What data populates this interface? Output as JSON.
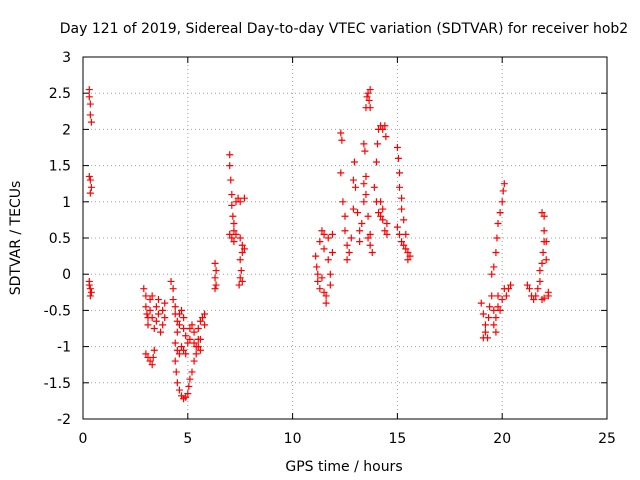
{
  "chart_data": {
    "type": "scatter",
    "title": "Day 121 of 2019, Sidereal Day-to-day VTEC variation (SDTVAR) for receiver hob2",
    "xlabel": "GPS time / hours",
    "ylabel": "SDTVAR / TECUs",
    "xlim": [
      0,
      25
    ],
    "ylim": [
      -2,
      3
    ],
    "xticks": [
      "0",
      "5",
      "10",
      "15",
      "20",
      "25"
    ],
    "yticks": [
      "-2",
      "-1.5",
      "-1",
      "-0.5",
      "0",
      "0.5",
      "1",
      "1.5",
      "2",
      "2.5",
      "3"
    ],
    "grid": true,
    "marker": "+",
    "color": "#ff0000",
    "series": [
      {
        "name": "SDTVAR",
        "points": [
          [
            0.3,
            2.55
          ],
          [
            0.3,
            2.45
          ],
          [
            0.35,
            2.35
          ],
          [
            0.35,
            2.2
          ],
          [
            0.4,
            2.1
          ],
          [
            0.3,
            1.35
          ],
          [
            0.35,
            1.3
          ],
          [
            0.4,
            1.2
          ],
          [
            0.35,
            1.12
          ],
          [
            0.3,
            -0.15
          ],
          [
            0.35,
            -0.2
          ],
          [
            0.4,
            -0.25
          ],
          [
            0.35,
            -0.3
          ],
          [
            0.3,
            -0.1
          ],
          [
            2.9,
            -0.2
          ],
          [
            3.0,
            -0.3
          ],
          [
            3.0,
            -0.45
          ],
          [
            3.05,
            -0.55
          ],
          [
            3.1,
            -0.6
          ],
          [
            3.1,
            -0.7
          ],
          [
            3.2,
            -0.5
          ],
          [
            3.2,
            -0.35
          ],
          [
            3.3,
            -0.3
          ],
          [
            3.3,
            -0.6
          ],
          [
            3.4,
            -0.75
          ],
          [
            3.5,
            -0.65
          ],
          [
            3.5,
            -0.45
          ],
          [
            3.6,
            -0.35
          ],
          [
            3.6,
            -0.55
          ],
          [
            3.7,
            -0.8
          ],
          [
            3.8,
            -0.7
          ],
          [
            3.8,
            -0.5
          ],
          [
            3.9,
            -0.4
          ],
          [
            3.9,
            -0.6
          ],
          [
            3.0,
            -1.1
          ],
          [
            3.1,
            -1.15
          ],
          [
            3.2,
            -1.2
          ],
          [
            3.3,
            -1.25
          ],
          [
            3.35,
            -1.15
          ],
          [
            3.4,
            -1.05
          ],
          [
            4.2,
            -0.1
          ],
          [
            4.3,
            -0.2
          ],
          [
            4.3,
            -0.35
          ],
          [
            4.4,
            -0.45
          ],
          [
            4.4,
            -0.55
          ],
          [
            4.5,
            -0.65
          ],
          [
            4.5,
            -0.8
          ],
          [
            4.6,
            -0.7
          ],
          [
            4.6,
            -0.55
          ],
          [
            4.7,
            -0.5
          ],
          [
            4.8,
            -0.6
          ],
          [
            4.8,
            -0.75
          ],
          [
            4.9,
            -0.85
          ],
          [
            5.0,
            -0.95
          ],
          [
            5.1,
            -0.9
          ],
          [
            5.1,
            -0.75
          ],
          [
            5.2,
            -0.7
          ],
          [
            5.3,
            -0.8
          ],
          [
            5.3,
            -0.95
          ],
          [
            5.4,
            -1.0
          ],
          [
            5.5,
            -0.9
          ],
          [
            5.5,
            -0.75
          ],
          [
            5.6,
            -0.65
          ],
          [
            5.7,
            -0.6
          ],
          [
            5.8,
            -0.7
          ],
          [
            5.8,
            -0.55
          ],
          [
            4.4,
            -1.2
          ],
          [
            4.45,
            -1.35
          ],
          [
            4.5,
            -1.5
          ],
          [
            4.6,
            -1.6
          ],
          [
            4.7,
            -1.68
          ],
          [
            4.8,
            -1.72
          ],
          [
            4.9,
            -1.7
          ],
          [
            5.0,
            -1.65
          ],
          [
            5.05,
            -1.55
          ],
          [
            5.1,
            -1.45
          ],
          [
            5.2,
            -1.35
          ],
          [
            5.3,
            -1.2
          ],
          [
            5.4,
            -1.1
          ],
          [
            5.5,
            -1.0
          ],
          [
            5.6,
            -0.9
          ],
          [
            5.6,
            -1.05
          ],
          [
            4.4,
            -0.95
          ],
          [
            4.5,
            -1.05
          ],
          [
            4.6,
            -1.1
          ],
          [
            4.7,
            -1.0
          ],
          [
            4.8,
            -1.05
          ],
          [
            4.9,
            -1.1
          ],
          [
            6.3,
            0.15
          ],
          [
            6.35,
            0.05
          ],
          [
            6.3,
            -0.05
          ],
          [
            6.35,
            -0.15
          ],
          [
            6.3,
            -0.2
          ],
          [
            7.0,
            1.65
          ],
          [
            7.0,
            1.5
          ],
          [
            7.05,
            1.3
          ],
          [
            7.1,
            1.1
          ],
          [
            7.1,
            0.95
          ],
          [
            7.15,
            0.8
          ],
          [
            7.2,
            0.7
          ],
          [
            7.2,
            0.6
          ],
          [
            7.3,
            0.55
          ],
          [
            7.3,
            1.0
          ],
          [
            7.4,
            1.05
          ],
          [
            7.5,
            1.0
          ],
          [
            7.5,
            0.5
          ],
          [
            7.6,
            0.4
          ],
          [
            7.6,
            0.3
          ],
          [
            7.7,
            1.05
          ],
          [
            7.7,
            0.35
          ],
          [
            7.5,
            0.2
          ],
          [
            7.55,
            0.05
          ],
          [
            7.5,
            -0.05
          ],
          [
            7.45,
            -0.15
          ],
          [
            7.6,
            -0.1
          ],
          [
            7.0,
            0.55
          ],
          [
            7.1,
            0.5
          ],
          [
            7.2,
            0.45
          ],
          [
            11.1,
            0.25
          ],
          [
            11.15,
            0.1
          ],
          [
            11.2,
            0.0
          ],
          [
            11.2,
            -0.1
          ],
          [
            11.3,
            -0.2
          ],
          [
            11.3,
            0.45
          ],
          [
            11.4,
            0.6
          ],
          [
            11.5,
            0.55
          ],
          [
            11.5,
            0.35
          ],
          [
            11.6,
            -0.3
          ],
          [
            11.6,
            -0.4
          ],
          [
            11.7,
            0.5
          ],
          [
            11.7,
            0.2
          ],
          [
            11.8,
            0.0
          ],
          [
            11.8,
            -0.15
          ],
          [
            11.9,
            0.3
          ],
          [
            11.9,
            0.55
          ],
          [
            11.4,
            -0.05
          ],
          [
            11.5,
            -0.25
          ],
          [
            12.3,
            1.95
          ],
          [
            12.35,
            1.85
          ],
          [
            12.3,
            1.4
          ],
          [
            12.4,
            1.0
          ],
          [
            12.5,
            0.8
          ],
          [
            12.5,
            0.6
          ],
          [
            12.6,
            0.4
          ],
          [
            12.6,
            0.2
          ],
          [
            12.7,
            0.3
          ],
          [
            12.8,
            0.5
          ],
          [
            12.9,
            0.9
          ],
          [
            12.9,
            1.3
          ],
          [
            12.95,
            1.55
          ],
          [
            13.0,
            1.2
          ],
          [
            13.1,
            0.85
          ],
          [
            13.2,
            0.6
          ],
          [
            13.2,
            0.45
          ],
          [
            13.3,
            0.7
          ],
          [
            13.4,
            1.0
          ],
          [
            13.4,
            1.25
          ],
          [
            13.5,
            1.35
          ],
          [
            13.5,
            1.1
          ],
          [
            13.6,
            0.8
          ],
          [
            13.6,
            0.5
          ],
          [
            13.7,
            0.4
          ],
          [
            13.7,
            0.55
          ],
          [
            13.8,
            0.3
          ],
          [
            13.5,
            2.3
          ],
          [
            13.55,
            2.45
          ],
          [
            13.6,
            2.5
          ],
          [
            13.65,
            2.4
          ],
          [
            13.7,
            2.55
          ],
          [
            13.7,
            2.3
          ],
          [
            13.4,
            1.8
          ],
          [
            13.45,
            1.7
          ],
          [
            13.9,
            1.2
          ],
          [
            14.0,
            1.55
          ],
          [
            14.05,
            1.8
          ],
          [
            14.1,
            2.0
          ],
          [
            14.2,
            2.05
          ],
          [
            14.3,
            2.0
          ],
          [
            14.4,
            2.05
          ],
          [
            14.45,
            1.9
          ],
          [
            14.0,
            1.0
          ],
          [
            14.1,
            0.85
          ],
          [
            14.2,
            0.8
          ],
          [
            14.3,
            0.75
          ],
          [
            14.4,
            0.6
          ],
          [
            14.5,
            0.55
          ],
          [
            14.5,
            0.7
          ],
          [
            14.3,
            0.9
          ],
          [
            14.2,
            1.0
          ],
          [
            15.0,
            1.75
          ],
          [
            15.05,
            1.6
          ],
          [
            15.1,
            1.4
          ],
          [
            15.1,
            1.2
          ],
          [
            15.2,
            1.05
          ],
          [
            15.2,
            0.9
          ],
          [
            15.3,
            0.75
          ],
          [
            15.0,
            0.65
          ],
          [
            15.1,
            0.55
          ],
          [
            15.2,
            0.45
          ],
          [
            15.3,
            0.4
          ],
          [
            15.4,
            0.35
          ],
          [
            15.4,
            0.55
          ],
          [
            15.5,
            0.3
          ],
          [
            15.5,
            0.2
          ],
          [
            15.6,
            0.25
          ],
          [
            19.0,
            -0.4
          ],
          [
            19.1,
            -0.55
          ],
          [
            19.2,
            -0.7
          ],
          [
            19.1,
            -0.88
          ],
          [
            19.2,
            -0.8
          ],
          [
            19.3,
            -0.88
          ],
          [
            19.35,
            -0.6
          ],
          [
            19.4,
            -0.45
          ],
          [
            19.5,
            -0.3
          ],
          [
            19.6,
            -0.5
          ],
          [
            19.6,
            -0.7
          ],
          [
            19.7,
            -0.8
          ],
          [
            19.7,
            -0.6
          ],
          [
            19.8,
            -0.45
          ],
          [
            19.8,
            -0.3
          ],
          [
            19.9,
            -0.5
          ],
          [
            20.0,
            -0.35
          ],
          [
            20.1,
            -0.2
          ],
          [
            20.2,
            -0.3
          ],
          [
            20.3,
            -0.2
          ],
          [
            20.4,
            -0.15
          ],
          [
            19.5,
            0.0
          ],
          [
            19.6,
            0.1
          ],
          [
            19.7,
            0.3
          ],
          [
            19.75,
            0.5
          ],
          [
            19.8,
            0.7
          ],
          [
            19.9,
            0.85
          ],
          [
            20.0,
            1.0
          ],
          [
            20.05,
            1.15
          ],
          [
            20.1,
            1.25
          ],
          [
            21.2,
            -0.15
          ],
          [
            21.3,
            -0.2
          ],
          [
            21.4,
            -0.3
          ],
          [
            21.5,
            -0.35
          ],
          [
            21.6,
            -0.3
          ],
          [
            21.7,
            -0.2
          ],
          [
            21.8,
            -0.1
          ],
          [
            21.8,
            0.05
          ],
          [
            21.9,
            0.15
          ],
          [
            21.95,
            0.3
          ],
          [
            22.0,
            0.45
          ],
          [
            22.0,
            0.6
          ],
          [
            21.9,
            0.85
          ],
          [
            22.0,
            0.8
          ],
          [
            22.1,
            0.45
          ],
          [
            22.1,
            0.2
          ],
          [
            22.2,
            -0.25
          ],
          [
            22.2,
            -0.3
          ],
          [
            22.0,
            -0.33
          ],
          [
            21.9,
            -0.35
          ]
        ]
      }
    ]
  }
}
